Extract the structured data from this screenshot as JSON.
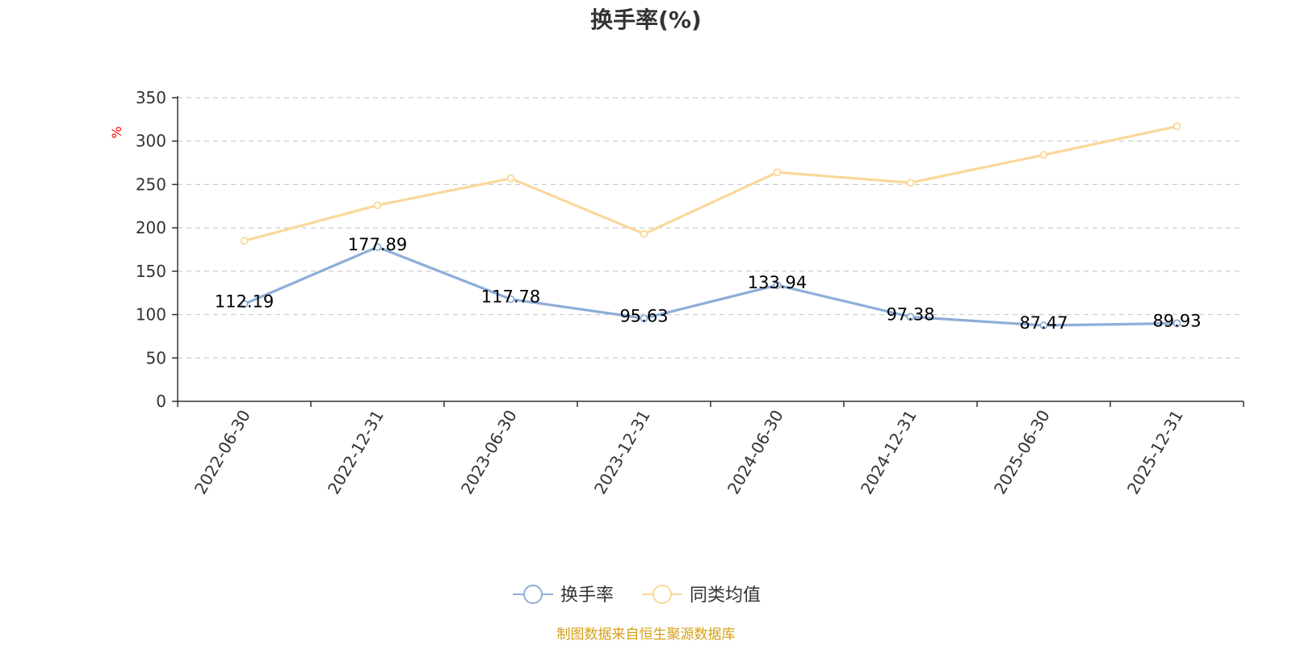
{
  "chart_data": {
    "type": "line",
    "title": "换手率(%)",
    "ylabel": "%",
    "xlabel": "",
    "ylim": [
      0,
      350
    ],
    "yticks": [
      0,
      50,
      100,
      150,
      200,
      250,
      300,
      350
    ],
    "grid": true,
    "legend_position": "bottom-center",
    "categories": [
      "2022-06-30",
      "2022-12-31",
      "2023-06-30",
      "2023-12-31",
      "2024-06-30",
      "2024-12-31",
      "2025-06-30",
      "2025-12-31"
    ],
    "series": [
      {
        "name": "换手率",
        "values": [
          112.19,
          177.89,
          117.78,
          95.63,
          133.94,
          97.38,
          87.47,
          89.93
        ],
        "labels": [
          "112.19",
          "177.89",
          "117.78",
          "95.63",
          "133.94",
          "97.38",
          "87.47",
          "89.93"
        ],
        "show_labels": true,
        "color": "#8eaed8"
      },
      {
        "name": "同类均值",
        "values": [
          185,
          226,
          257,
          193,
          264,
          252,
          284,
          317
        ],
        "show_labels": false,
        "color": "#fbd899"
      }
    ],
    "source": "制图数据来自恒生聚源数据库"
  },
  "colors": {
    "axis": "#333333",
    "grid": "#cccccc",
    "unit": "#ff0000",
    "source": "#d4a017"
  }
}
